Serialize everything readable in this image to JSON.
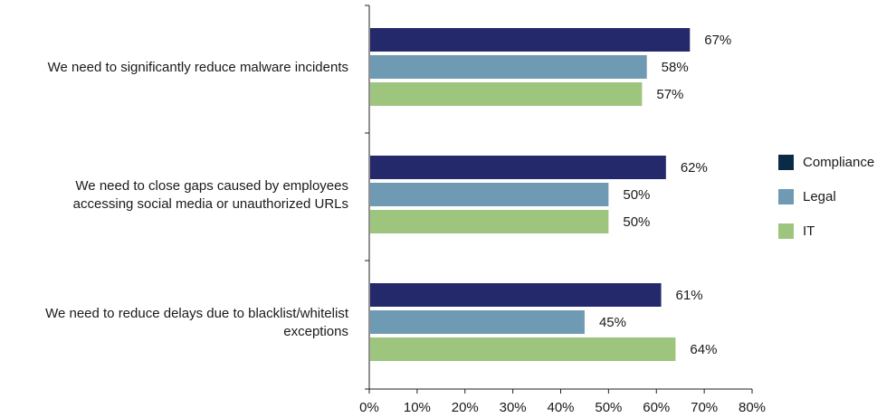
{
  "chart_data": {
    "type": "bar",
    "orientation": "horizontal",
    "title": "",
    "xlabel": "",
    "ylabel": "",
    "xlim": [
      0,
      80
    ],
    "x_ticks": [
      "0%",
      "10%",
      "20%",
      "30%",
      "40%",
      "50%",
      "60%",
      "70%",
      "80%"
    ],
    "grid": false,
    "legend_position": "right",
    "categories": [
      [
        "We need to significantly reduce malware incidents"
      ],
      [
        "We need to close gaps caused by employees",
        "accessing social media or unauthorized URLs"
      ],
      [
        "We need to reduce delays due to blacklist/whitelist",
        "exceptions"
      ]
    ],
    "series": [
      {
        "name": "Compliance",
        "color": "#24296b",
        "values": [
          67,
          62,
          61
        ]
      },
      {
        "name": "Legal",
        "color": "#6f9ab4",
        "values": [
          58,
          50,
          45
        ]
      },
      {
        "name": "IT",
        "color": "#9ec57d",
        "values": [
          57,
          50,
          64
        ]
      }
    ],
    "value_suffix": "%"
  }
}
